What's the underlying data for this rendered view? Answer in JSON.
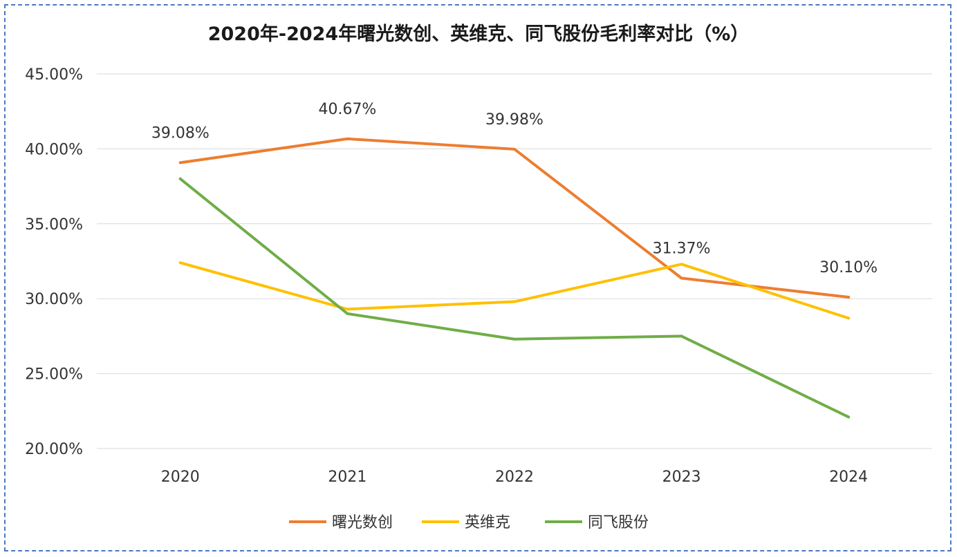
{
  "chart_data": {
    "type": "line",
    "title": "2020年-2024年曙光数创、英维克、同飞股份毛利率对比（%）",
    "categories": [
      "2020",
      "2021",
      "2022",
      "2023",
      "2024"
    ],
    "ylim": [
      20,
      45
    ],
    "yticks": [
      "20.00%",
      "25.00%",
      "30.00%",
      "35.00%",
      "40.00%",
      "45.00%"
    ],
    "ytick_values": [
      20,
      25,
      30,
      35,
      40,
      45
    ],
    "grid": true,
    "legend_position": "bottom",
    "series": [
      {
        "name": "曙光数创",
        "color": "#ed7d31",
        "values": [
          39.08,
          40.67,
          39.98,
          31.37,
          30.1
        ],
        "data_labels": [
          "39.08%",
          "40.67%",
          "39.98%",
          "31.37%",
          "30.10%"
        ]
      },
      {
        "name": "英维克",
        "color": "#ffc000",
        "values": [
          32.4,
          29.3,
          29.8,
          32.3,
          28.7
        ]
      },
      {
        "name": "同飞股份",
        "color": "#70ad47",
        "values": [
          38.0,
          29.0,
          27.3,
          27.5,
          22.1
        ]
      }
    ]
  }
}
